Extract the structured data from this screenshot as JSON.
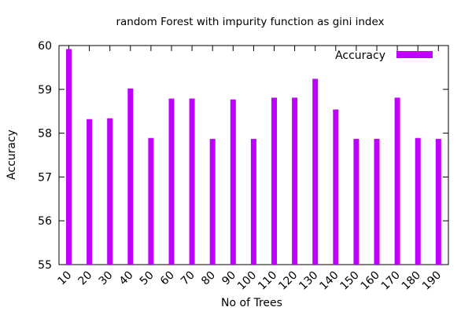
{
  "chart_data": {
    "type": "bar",
    "title": "random Forest with impurity function as gini index",
    "xlabel": "No of Trees",
    "ylabel": "Accuracy",
    "ylim": [
      55,
      60
    ],
    "yticks": [
      "55",
      "56",
      "57",
      "58",
      "59",
      "60"
    ],
    "grid": false,
    "legend_position": "top-right",
    "categories": [
      "10",
      "20",
      "30",
      "40",
      "50",
      "60",
      "70",
      "80",
      "90",
      "100",
      "110",
      "120",
      "130",
      "140",
      "150",
      "160",
      "170",
      "180",
      "190"
    ],
    "series": [
      {
        "name": "Accuracy",
        "color": "#bf00ff",
        "values": [
          59.92,
          58.32,
          58.34,
          59.02,
          57.89,
          58.79,
          58.79,
          57.87,
          58.77,
          57.87,
          58.81,
          58.81,
          59.24,
          58.54,
          57.87,
          57.87,
          58.81,
          57.89,
          57.87
        ]
      }
    ]
  }
}
